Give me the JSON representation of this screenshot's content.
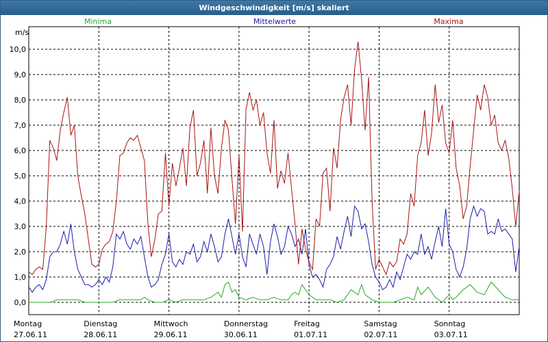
{
  "window": {
    "title": "Windgeschwindigkeit [m/s] skaliert"
  },
  "colors": {
    "minima": "#22aa22",
    "mittel": "#1a1aaa",
    "maxima": "#aa1111",
    "frame_border": "#2f5f86",
    "grid": "#000000"
  },
  "chart_data": {
    "type": "line",
    "ylabel": "m/s",
    "ylim": [
      0,
      10.7
    ],
    "yticks": [
      0,
      1,
      2,
      3,
      4,
      5,
      6,
      7,
      8,
      9,
      10
    ],
    "ytick_labels": [
      "0,0",
      "1,0",
      "2,0",
      "3,0",
      "4,0",
      "5,0",
      "6,0",
      "7,0",
      "8,0",
      "9,0",
      "10,0"
    ],
    "xlim": [
      0,
      7
    ],
    "x_categories": [
      {
        "day": "Montag",
        "date": "27.06.11"
      },
      {
        "day": "Dienstag",
        "date": "28.06.11"
      },
      {
        "day": "Mittwoch",
        "date": "29.06.11"
      },
      {
        "day": "Donnerstag",
        "date": "30.06.11"
      },
      {
        "day": "Freitag",
        "date": "01.07.11"
      },
      {
        "day": "Samstag",
        "date": "02.07.11"
      },
      {
        "day": "Sonntag",
        "date": "03.07.11"
      }
    ],
    "grid": true,
    "series": [
      {
        "name": "Minima",
        "color": "#22aa22",
        "x": [
          0,
          0.1,
          0.2,
          0.3,
          0.4,
          0.5,
          0.55,
          0.6,
          0.7,
          0.8,
          0.9,
          1.0,
          1.1,
          1.2,
          1.3,
          1.4,
          1.5,
          1.6,
          1.65,
          1.7,
          1.8,
          1.9,
          2.0,
          2.1,
          2.2,
          2.3,
          2.4,
          2.5,
          2.6,
          2.7,
          2.75,
          2.8,
          2.85,
          2.9,
          2.95,
          3.0,
          3.1,
          3.2,
          3.3,
          3.4,
          3.5,
          3.6,
          3.7,
          3.75,
          3.8,
          3.85,
          3.9,
          4.0,
          4.1,
          4.2,
          4.3,
          4.4,
          4.5,
          4.6,
          4.7,
          4.75,
          4.8,
          4.9,
          5.0,
          5.1,
          5.2,
          5.3,
          5.4,
          5.5,
          5.55,
          5.6,
          5.7,
          5.8,
          5.9,
          6.0,
          6.05,
          6.1,
          6.2,
          6.3,
          6.4,
          6.5,
          6.6,
          6.7,
          6.8,
          6.9,
          7.0
        ],
        "values": [
          0.0,
          0.0,
          0.0,
          0.0,
          0.1,
          0.1,
          0.1,
          0.1,
          0.1,
          0.0,
          0.0,
          0.0,
          0.0,
          0.0,
          0.1,
          0.1,
          0.1,
          0.1,
          0.2,
          0.1,
          0.0,
          0.0,
          0.1,
          0.0,
          0.1,
          0.1,
          0.1,
          0.1,
          0.2,
          0.4,
          0.2,
          0.7,
          0.8,
          0.4,
          0.5,
          0.2,
          0.1,
          0.2,
          0.1,
          0.1,
          0.2,
          0.1,
          0.1,
          0.3,
          0.4,
          0.3,
          0.7,
          0.3,
          0.1,
          0.1,
          0.1,
          0.0,
          0.1,
          0.5,
          0.3,
          0.7,
          0.3,
          0.1,
          0.0,
          0.0,
          0.0,
          0.1,
          0.2,
          0.1,
          0.6,
          0.3,
          0.6,
          0.2,
          0.0,
          0.3,
          0.1,
          0.2,
          0.5,
          0.7,
          0.4,
          0.3,
          0.8,
          0.5,
          0.2,
          0.1,
          0.1
        ]
      },
      {
        "name": "Mittelwerte",
        "color": "#1a1aaa",
        "x": [
          0,
          0.05,
          0.1,
          0.15,
          0.2,
          0.25,
          0.3,
          0.35,
          0.4,
          0.45,
          0.5,
          0.55,
          0.6,
          0.65,
          0.7,
          0.75,
          0.8,
          0.85,
          0.9,
          0.95,
          1.0,
          1.05,
          1.1,
          1.15,
          1.2,
          1.25,
          1.3,
          1.35,
          1.4,
          1.45,
          1.5,
          1.55,
          1.6,
          1.65,
          1.7,
          1.75,
          1.8,
          1.85,
          1.9,
          1.95,
          2.0,
          2.05,
          2.1,
          2.15,
          2.2,
          2.25,
          2.3,
          2.35,
          2.4,
          2.45,
          2.5,
          2.55,
          2.6,
          2.65,
          2.7,
          2.75,
          2.8,
          2.85,
          2.9,
          2.95,
          3.0,
          3.05,
          3.1,
          3.15,
          3.2,
          3.25,
          3.3,
          3.35,
          3.4,
          3.45,
          3.5,
          3.55,
          3.6,
          3.65,
          3.7,
          3.75,
          3.8,
          3.85,
          3.9,
          3.95,
          4.0,
          4.05,
          4.1,
          4.15,
          4.2,
          4.25,
          4.3,
          4.35,
          4.4,
          4.45,
          4.5,
          4.55,
          4.6,
          4.65,
          4.7,
          4.75,
          4.8,
          4.85,
          4.9,
          4.95,
          5.0,
          5.05,
          5.1,
          5.15,
          5.2,
          5.25,
          5.3,
          5.35,
          5.4,
          5.45,
          5.5,
          5.55,
          5.6,
          5.65,
          5.7,
          5.75,
          5.8,
          5.85,
          5.9,
          5.95,
          6.0,
          6.05,
          6.1,
          6.15,
          6.2,
          6.25,
          6.3,
          6.35,
          6.4,
          6.45,
          6.5,
          6.55,
          6.6,
          6.65,
          6.7,
          6.75,
          6.8,
          6.85,
          6.9,
          6.95,
          7.0
        ],
        "values": [
          0.6,
          0.4,
          0.6,
          0.7,
          0.5,
          0.9,
          1.8,
          2.0,
          2.0,
          2.3,
          2.8,
          2.3,
          3.1,
          2.0,
          1.3,
          1.0,
          0.7,
          0.7,
          0.6,
          0.7,
          0.9,
          0.7,
          1.0,
          0.8,
          1.4,
          2.7,
          2.5,
          2.8,
          2.3,
          2.1,
          2.5,
          2.3,
          2.6,
          1.8,
          1.0,
          0.6,
          0.7,
          0.9,
          1.5,
          1.9,
          2.7,
          1.6,
          1.4,
          1.7,
          1.5,
          2.0,
          1.9,
          2.3,
          1.6,
          1.8,
          2.4,
          2.0,
          2.7,
          2.2,
          1.6,
          1.8,
          2.7,
          3.3,
          2.6,
          1.9,
          2.7,
          1.8,
          1.4,
          2.7,
          2.3,
          1.9,
          2.7,
          2.2,
          1.1,
          2.4,
          3.1,
          2.6,
          1.9,
          2.2,
          3.0,
          2.7,
          2.2,
          2.5,
          1.9,
          2.9,
          1.5,
          1.0,
          1.1,
          0.9,
          0.6,
          1.3,
          1.5,
          1.8,
          2.6,
          2.1,
          2.8,
          3.4,
          2.6,
          3.8,
          3.6,
          2.9,
          3.1,
          2.4,
          1.5,
          1.0,
          0.8,
          0.5,
          0.6,
          0.9,
          0.6,
          1.2,
          0.9,
          1.4,
          1.9,
          1.7,
          2.0,
          1.9,
          2.7,
          1.9,
          2.2,
          1.7,
          2.4,
          3.0,
          2.2,
          3.7,
          2.3,
          2.0,
          1.3,
          1.0,
          1.4,
          2.1,
          3.3,
          3.8,
          3.4,
          3.7,
          3.6,
          2.7,
          2.8,
          2.7,
          3.3,
          2.8,
          2.9,
          2.7,
          2.5,
          1.2,
          2.2
        ]
      },
      {
        "name": "Maxima",
        "color": "#aa1111",
        "x": [
          0,
          0.05,
          0.1,
          0.15,
          0.2,
          0.25,
          0.3,
          0.35,
          0.4,
          0.45,
          0.5,
          0.55,
          0.6,
          0.65,
          0.7,
          0.75,
          0.8,
          0.85,
          0.9,
          0.95,
          1.0,
          1.05,
          1.1,
          1.15,
          1.2,
          1.25,
          1.3,
          1.35,
          1.4,
          1.45,
          1.5,
          1.55,
          1.6,
          1.65,
          1.7,
          1.75,
          1.8,
          1.85,
          1.9,
          1.95,
          2.0,
          2.05,
          2.1,
          2.15,
          2.2,
          2.25,
          2.3,
          2.35,
          2.4,
          2.45,
          2.5,
          2.55,
          2.6,
          2.65,
          2.7,
          2.75,
          2.8,
          2.85,
          2.9,
          2.95,
          3.0,
          3.05,
          3.1,
          3.15,
          3.2,
          3.25,
          3.3,
          3.35,
          3.4,
          3.45,
          3.5,
          3.55,
          3.6,
          3.65,
          3.7,
          3.75,
          3.8,
          3.85,
          3.9,
          3.95,
          4.0,
          4.05,
          4.1,
          4.15,
          4.2,
          4.25,
          4.3,
          4.35,
          4.4,
          4.45,
          4.5,
          4.55,
          4.6,
          4.65,
          4.7,
          4.75,
          4.8,
          4.85,
          4.9,
          4.95,
          5.0,
          5.05,
          5.1,
          5.15,
          5.2,
          5.25,
          5.3,
          5.35,
          5.4,
          5.45,
          5.5,
          5.55,
          5.6,
          5.65,
          5.7,
          5.75,
          5.8,
          5.85,
          5.9,
          5.95,
          6.0,
          6.05,
          6.1,
          6.15,
          6.2,
          6.25,
          6.3,
          6.35,
          6.4,
          6.45,
          6.5,
          6.55,
          6.6,
          6.65,
          6.7,
          6.75,
          6.8,
          6.85,
          6.9,
          6.95,
          7.0
        ],
        "values": [
          1.2,
          1.1,
          1.3,
          1.4,
          1.3,
          3.0,
          6.4,
          6.1,
          5.6,
          6.8,
          7.5,
          8.1,
          6.6,
          7.0,
          5.0,
          4.2,
          3.5,
          2.5,
          1.5,
          1.4,
          1.5,
          2.1,
          2.3,
          2.4,
          2.8,
          4.0,
          5.8,
          5.9,
          6.3,
          6.5,
          6.4,
          6.6,
          6.1,
          5.6,
          3.1,
          1.8,
          2.5,
          3.5,
          3.6,
          5.9,
          3.8,
          5.5,
          4.6,
          5.3,
          6.1,
          4.6,
          6.9,
          7.6,
          5.0,
          5.5,
          6.4,
          4.3,
          6.9,
          5.0,
          4.3,
          6.1,
          7.2,
          6.8,
          4.9,
          3.1,
          5.8,
          2.8,
          7.6,
          8.3,
          7.6,
          8.0,
          7.0,
          7.5,
          5.9,
          5.1,
          7.2,
          4.5,
          5.2,
          4.7,
          5.9,
          4.5,
          3.1,
          1.5,
          2.9,
          2.1,
          1.6,
          1.3,
          3.3,
          3.0,
          5.1,
          5.3,
          3.6,
          6.1,
          5.3,
          7.2,
          8.1,
          8.6,
          7.0,
          9.2,
          10.3,
          8.8,
          6.8,
          8.9,
          4.0,
          1.3,
          1.7,
          1.4,
          1.1,
          1.6,
          1.4,
          1.6,
          2.5,
          2.3,
          2.7,
          4.3,
          3.8,
          5.8,
          6.3,
          7.6,
          5.8,
          6.7,
          8.6,
          7.1,
          7.8,
          6.3,
          5.9,
          7.2,
          5.3,
          4.6,
          3.3,
          3.8,
          5.4,
          6.8,
          8.2,
          7.6,
          8.6,
          8.1,
          7.0,
          7.4,
          6.3,
          6.0,
          6.4,
          5.7,
          4.5,
          3.0,
          4.4
        ]
      }
    ]
  }
}
